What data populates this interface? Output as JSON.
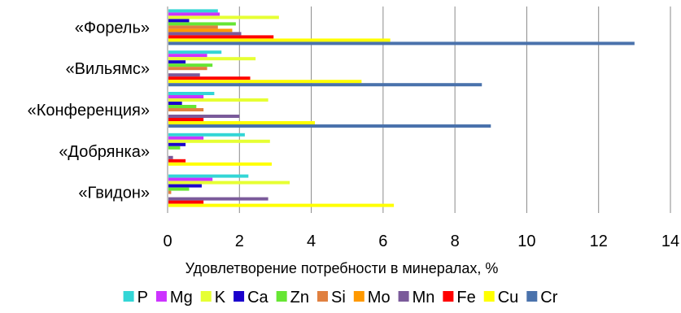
{
  "chart_data": {
    "type": "bar",
    "orientation": "horizontal",
    "categories": [
      "«Форель»",
      "«Вильямс»",
      "«Конференция»",
      "«Добрянка»",
      "«Гвидон»"
    ],
    "xlabel": "Удовлетворение потребности в минералах, %",
    "xlim": [
      0,
      14
    ],
    "xticks": [
      "0",
      "2",
      "4",
      "6",
      "8",
      "10",
      "12",
      "14"
    ],
    "grid": true,
    "legend_position": "bottom",
    "series": [
      {
        "name": "P",
        "color": "#33d6d6",
        "values": [
          1.4,
          1.5,
          1.3,
          2.15,
          2.25
        ]
      },
      {
        "name": "Mg",
        "color": "#cc33ff",
        "values": [
          1.45,
          1.1,
          1.0,
          1.0,
          1.25
        ]
      },
      {
        "name": "K",
        "color": "#e6ff33",
        "values": [
          3.1,
          2.45,
          2.8,
          2.85,
          3.4
        ]
      },
      {
        "name": "Ca",
        "color": "#1a00cc",
        "values": [
          0.6,
          0.5,
          0.4,
          0.5,
          0.95
        ]
      },
      {
        "name": "Zn",
        "color": "#66e633",
        "values": [
          1.9,
          1.25,
          0.8,
          0.35,
          0.6
        ]
      },
      {
        "name": "Si",
        "color": "#e08040",
        "values": [
          1.4,
          1.1,
          1.0,
          0.0,
          0.1
        ]
      },
      {
        "name": "Mo",
        "color": "#ff9900",
        "values": [
          1.8,
          0.0,
          0.0,
          0.0,
          0.0
        ]
      },
      {
        "name": "Mn",
        "color": "#7a5a9a",
        "values": [
          2.05,
          0.9,
          2.0,
          0.15,
          2.8
        ]
      },
      {
        "name": "Fe",
        "color": "#ff0000",
        "values": [
          2.95,
          2.3,
          1.0,
          0.5,
          1.0
        ]
      },
      {
        "name": "Cu",
        "color": "#ffff00",
        "values": [
          6.2,
          5.4,
          4.1,
          2.9,
          6.3
        ]
      },
      {
        "name": "Cr",
        "color": "#4a72ac",
        "values": [
          13.0,
          8.75,
          9.0,
          0.0,
          0.0
        ]
      }
    ]
  }
}
